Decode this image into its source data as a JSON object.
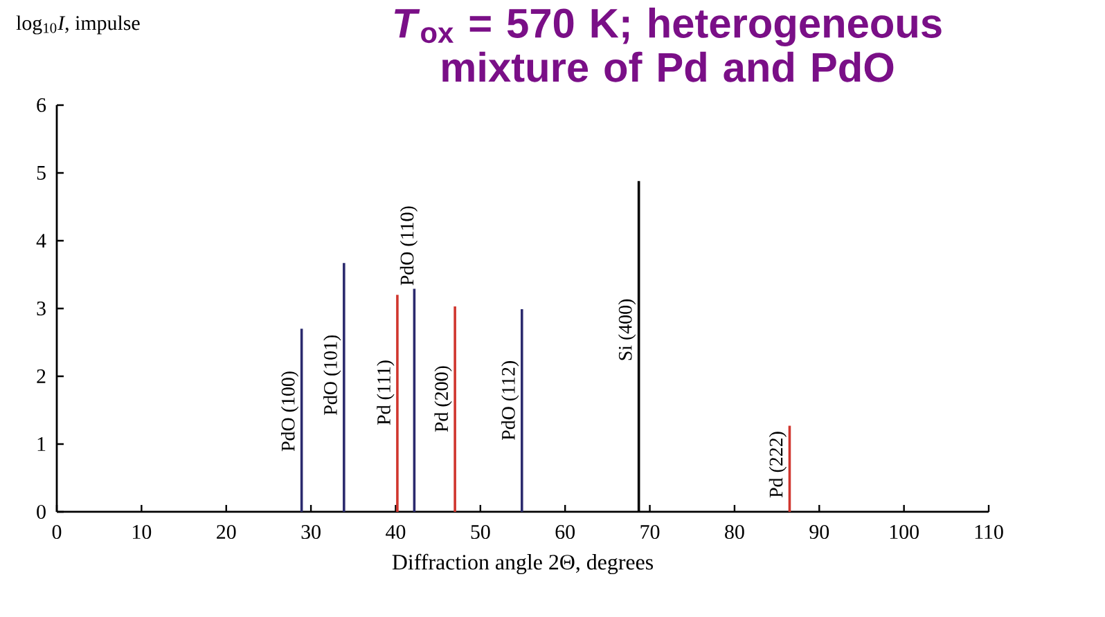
{
  "chart_data": {
    "type": "bar",
    "title": "*T*$_{ox}$ = 570 K; heterogeneous mixture of Pd and PdO",
    "xlabel": "Diffraction angle 2Θ, degrees",
    "ylabel": "log$_{10}$*I*, impulse",
    "series": [
      {
        "color": "#2b2a6e",
        "x": [
          28.9,
          33.9,
          42.2,
          54.9
        ],
        "values": [
          2.7,
          3.67,
          3.29,
          2.99
        ]
      },
      {
        "color": "#d0362e",
        "x": [
          40.2,
          47.0,
          86.5
        ],
        "values": [
          3.2,
          3.03,
          1.27
        ]
      },
      {
        "color": "#000000",
        "x": [
          68.7
        ],
        "values": [
          4.88
        ]
      }
    ],
    "annotations": [
      "PdO (100)",
      "PdO (101)",
      "Pd (111)",
      "PdO (110)",
      "Pd (200)",
      "PdO (112)",
      "Si (400)",
      "Pd (222)"
    ],
    "xlim": [
      0,
      110
    ],
    "xticks": [
      0,
      10,
      20,
      30,
      40,
      50,
      60,
      70,
      80,
      90,
      100,
      110
    ],
    "ylim": [
      0,
      6
    ],
    "yticks": [
      0,
      1,
      2,
      3,
      4,
      5,
      6
    ],
    "grid": false
  }
}
